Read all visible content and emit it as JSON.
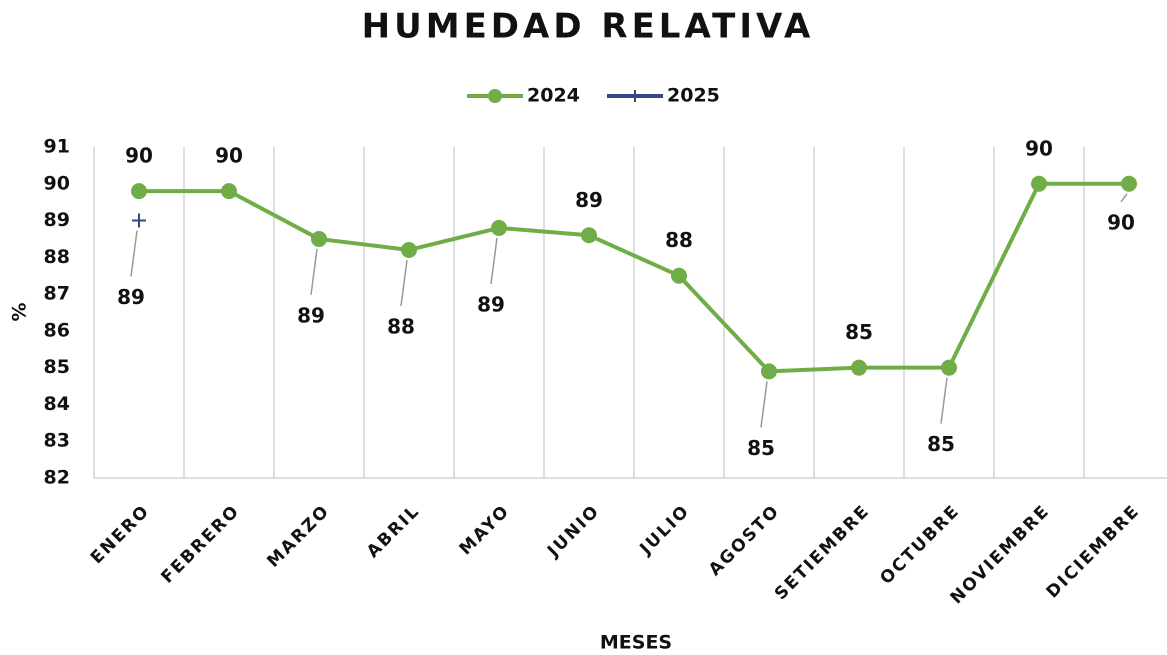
{
  "chart_data": {
    "type": "line",
    "title": "HUMEDAD RELATIVA",
    "x_label": "MESES",
    "y_label": "%",
    "categories": [
      "ENERO",
      "FEBRERO",
      "MARZO",
      "ABRIL",
      "MAYO",
      "JUNIO",
      "JULIO",
      "AGOSTO",
      "SETIEMBRE",
      "OCTUBRE",
      "NOVIEMBRE",
      "DICIEMBRE"
    ],
    "series": [
      {
        "name": "2024",
        "color": "#70ad47",
        "marker": "circle",
        "values": [
          89.8,
          89.8,
          88.5,
          88.2,
          88.8,
          88.6,
          87.5,
          84.9,
          85.0,
          85.0,
          90.0,
          90.0
        ],
        "value_labels": [
          "90",
          "90",
          "89",
          "88",
          "89",
          "89",
          "88",
          "85",
          "85",
          "85",
          "90",
          "90"
        ]
      },
      {
        "name": "2025",
        "color": "#2f4a86",
        "marker": "plus",
        "values": [
          89,
          null,
          null,
          null,
          null,
          null,
          null,
          null,
          null,
          null,
          null,
          null
        ]
      }
    ],
    "ylim": [
      82,
      91
    ],
    "yticks": [
      82,
      83,
      84,
      85,
      86,
      87,
      88,
      89,
      90,
      91
    ],
    "grid": "x",
    "legend": "top"
  }
}
